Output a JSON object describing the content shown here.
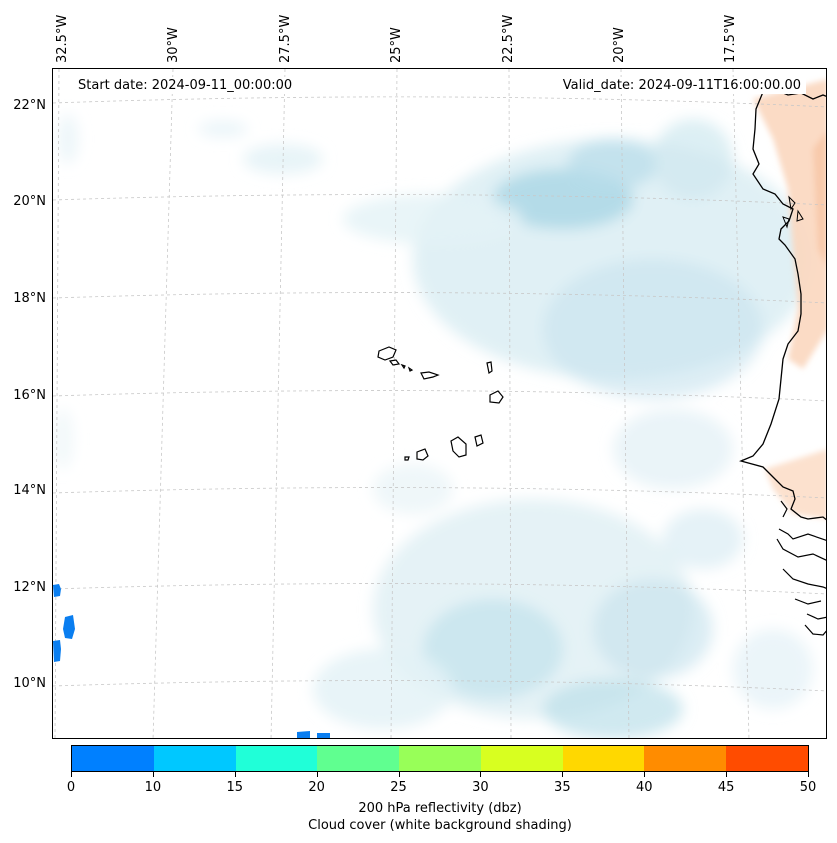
{
  "map": {
    "start_date": "Start date: 2024-09-11_00:00:00",
    "valid_date": "Valid_date: 2024-09-11T16:00:00.00",
    "longitude_labels": [
      "32.5°W",
      "30°W",
      "27.5°W",
      "25°W",
      "22.5°W",
      "20°W",
      "17.5°W"
    ],
    "latitude_labels": [
      "22°N",
      "20°N",
      "18°N",
      "16°N",
      "14°N",
      "12°N",
      "10°N"
    ]
  },
  "colorbar": {
    "colors": [
      "#0080ff",
      "#00c8ff",
      "#20ffd8",
      "#60ff90",
      "#98ff58",
      "#d8ff20",
      "#ffd800",
      "#ff8c00",
      "#ff4c00"
    ],
    "ticks": [
      "0",
      "10",
      "15",
      "20",
      "25",
      "30",
      "35",
      "40",
      "45",
      "50"
    ],
    "title_line1": "200 hPa reflectivity (dbz)",
    "title_line2": "Cloud cover (white background shading)"
  }
}
